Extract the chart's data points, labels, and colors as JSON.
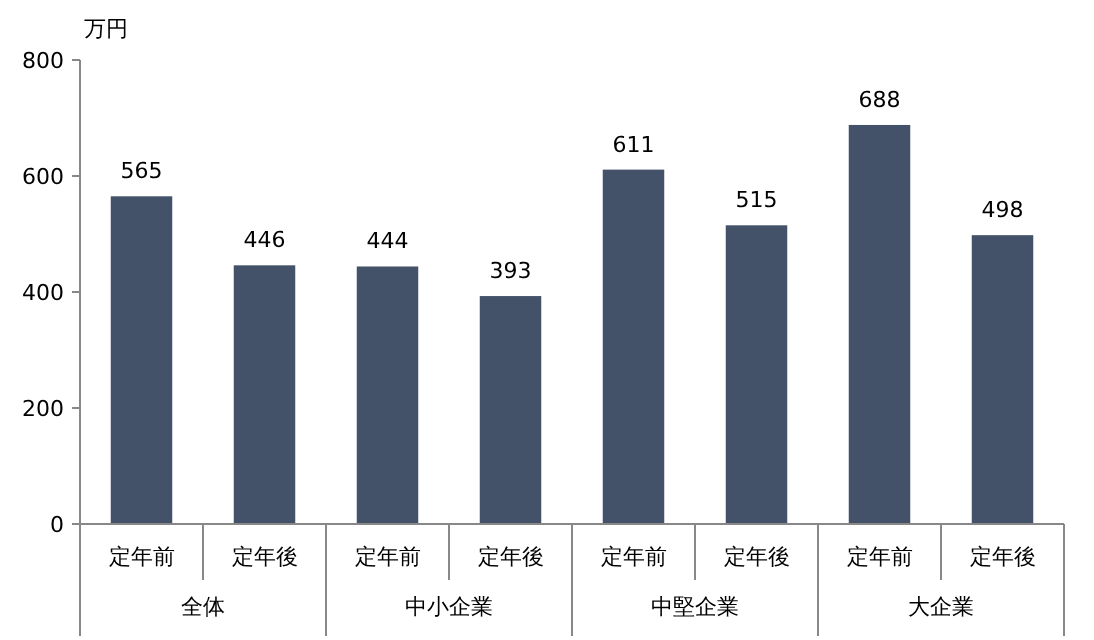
{
  "chart_data": {
    "type": "bar",
    "ylabel": "万円",
    "categories": [
      "定年前",
      "定年後",
      "定年前",
      "定年後",
      "定年前",
      "定年後",
      "定年前",
      "定年後"
    ],
    "values": [
      565,
      446,
      444,
      393,
      611,
      515,
      688,
      498
    ],
    "color": "#435268",
    "ylim": [
      0,
      800
    ],
    "yticks": [
      0,
      200,
      400,
      600,
      800
    ],
    "data_labels": true,
    "annotations": [
      "全体",
      "中小企業",
      "中堅企業",
      "大企業"
    ]
  }
}
